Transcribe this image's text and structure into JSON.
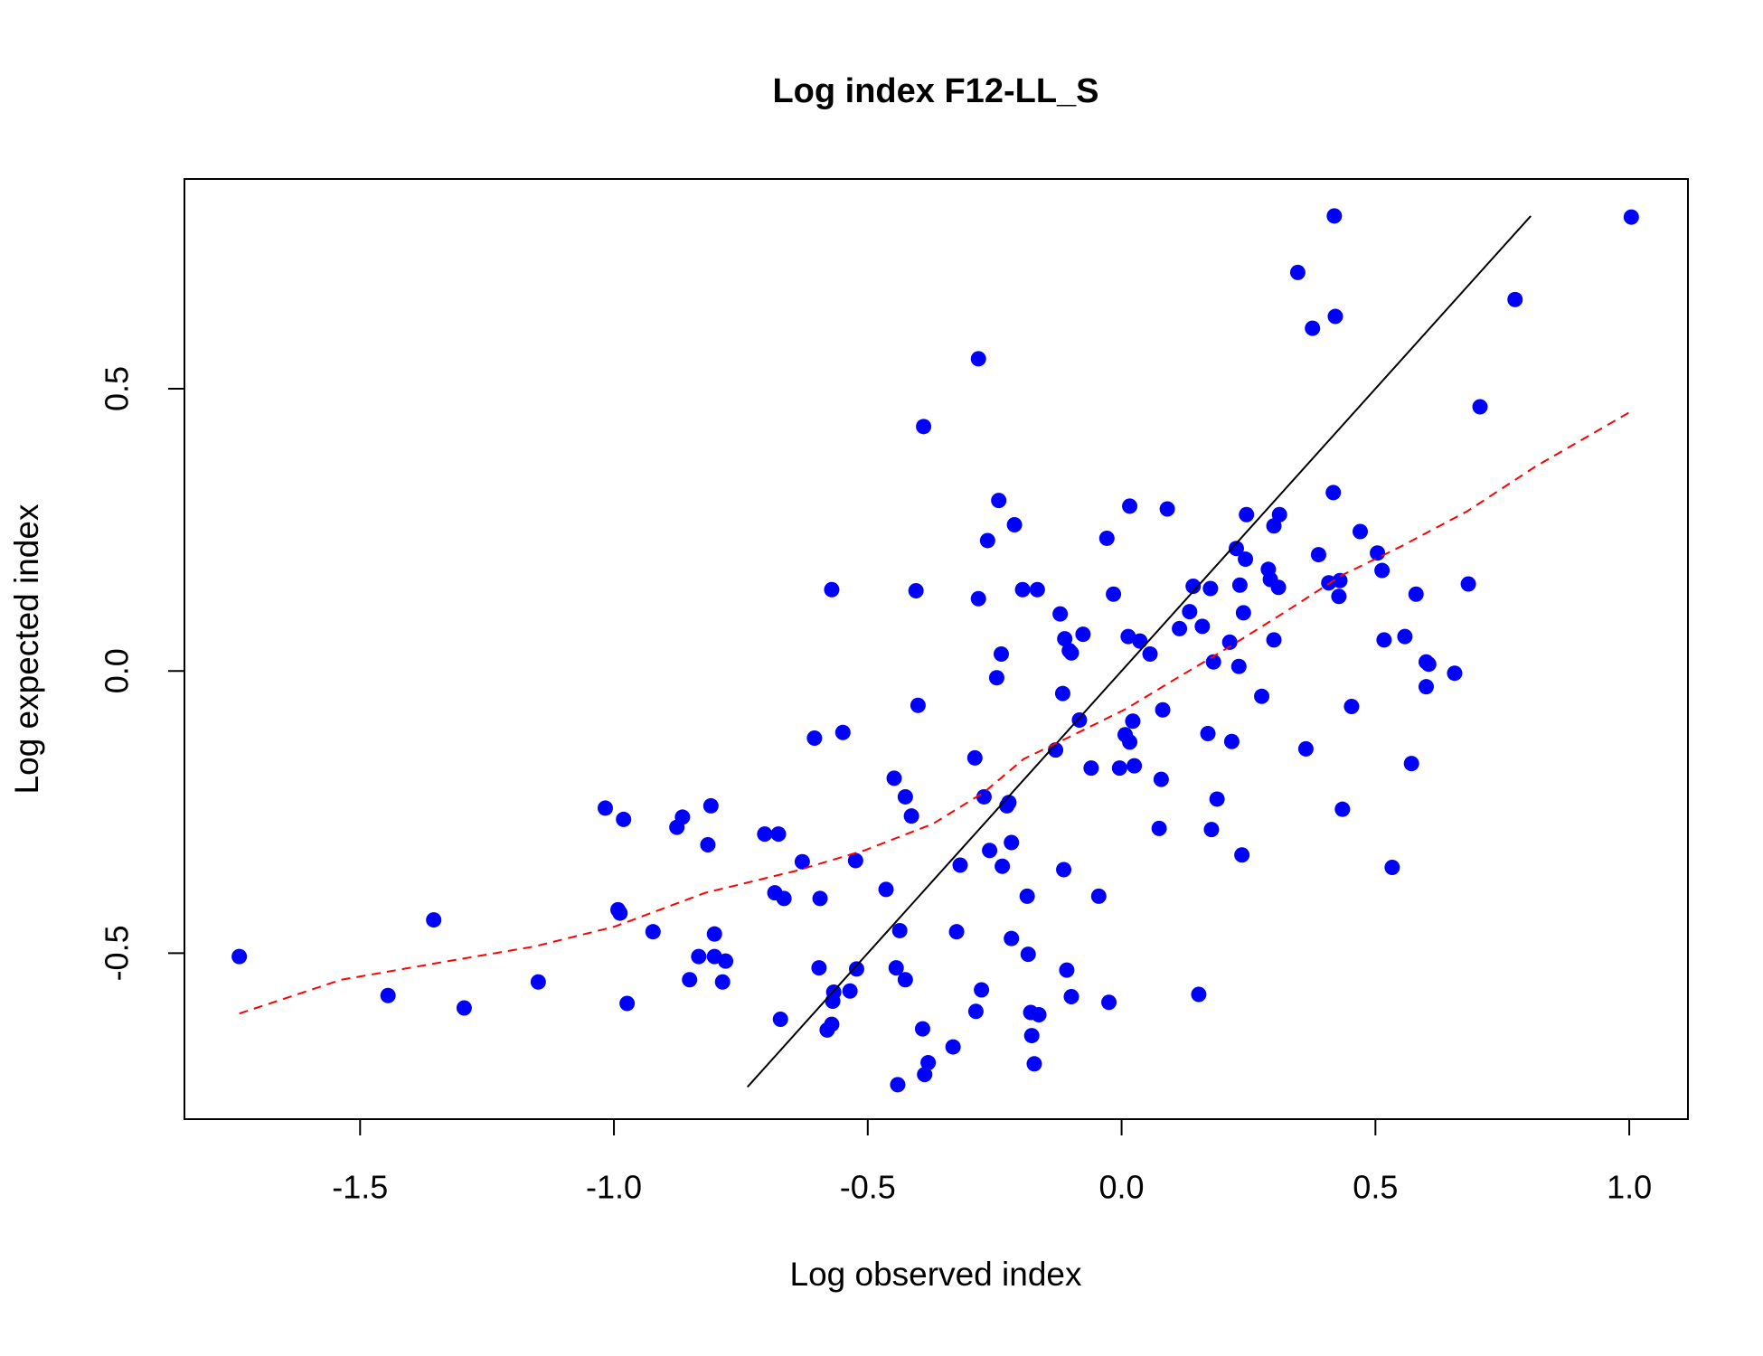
{
  "chart_data": {
    "type": "scatter",
    "title": "Log index F12-LL_S",
    "x_label": "Log observed index",
    "y_label": "Log expected index",
    "xlim": [
      -1.846,
      1.1156
    ],
    "ylim": [
      -0.794,
      0.8715
    ],
    "xticks": [
      -1.5,
      {
        "value": -1,
        "label": "-1.0"
      },
      -0.5,
      {
        "value": 0,
        "label": "0.0"
      },
      0.5,
      {
        "value": 1,
        "label": "1.0"
      }
    ],
    "yticks": [
      -0.5,
      {
        "value": 0,
        "label": "0.0"
      },
      0.5
    ],
    "series": [
      {
        "type": "scatter",
        "color": "#0000ff",
        "x": [
          -1.738,
          -1.445,
          -1.355,
          -1.295,
          -1.149,
          -1.017,
          -0.992,
          -0.988,
          -0.981,
          -0.974,
          -0.923,
          -0.876,
          -0.865,
          -0.851,
          -0.833,
          -0.815,
          -0.809,
          -0.802,
          -0.802,
          -0.786,
          -0.78,
          -0.703,
          -0.676,
          -0.683,
          -0.672,
          -0.665,
          -0.629,
          -0.605,
          -0.594,
          -0.596,
          -0.58,
          -0.571,
          -0.571,
          -0.569,
          -0.567,
          -0.549,
          -0.535,
          -0.524,
          -0.522,
          -0.464,
          -0.448,
          -0.444,
          -0.441,
          -0.437,
          -0.426,
          -0.426,
          -0.414,
          -0.405,
          -0.401,
          -0.392,
          -0.39,
          -0.388,
          -0.381,
          -0.332,
          -0.325,
          -0.318,
          -0.289,
          -0.282,
          -0.282,
          -0.287,
          -0.276,
          -0.271,
          -0.264,
          -0.26,
          -0.246,
          -0.242,
          -0.237,
          -0.235,
          -0.226,
          -0.222,
          -0.217,
          -0.217,
          -0.211,
          -0.195,
          -0.186,
          -0.184,
          -0.177,
          -0.179,
          -0.172,
          -0.163,
          -0.166,
          -0.13,
          -0.121,
          -0.116,
          -0.114,
          -0.112,
          -0.108,
          -0.103,
          -0.099,
          -0.099,
          -0.083,
          -0.076,
          -0.06,
          -0.045,
          -0.029,
          -0.025,
          -0.016,
          -0.004,
          0.007,
          0.013,
          0.016,
          0.016,
          0.022,
          0.025,
          0.036,
          0.056,
          0.074,
          0.078,
          0.081,
          0.09,
          0.114,
          0.134,
          0.141,
          0.152,
          0.159,
          0.17,
          0.175,
          0.177,
          0.181,
          0.188,
          0.213,
          0.217,
          0.226,
          0.231,
          0.233,
          0.24,
          0.237,
          0.244,
          0.246,
          0.276,
          0.289,
          0.293,
          0.3,
          0.3,
          0.309,
          0.311,
          0.347,
          0.363,
          0.376,
          0.388,
          0.408,
          0.417,
          0.419,
          0.421,
          0.428,
          0.43,
          0.435,
          0.453,
          0.47,
          0.504,
          0.513,
          0.517,
          0.533,
          0.558,
          0.571,
          0.58,
          0.6,
          0.605,
          0.6,
          0.656,
          0.683,
          0.706,
          0.775,
          1.004
        ],
        "values": [
          -0.506,
          -0.575,
          -0.441,
          -0.597,
          -0.551,
          -0.243,
          -0.423,
          -0.429,
          -0.263,
          -0.589,
          -0.462,
          -0.277,
          -0.259,
          -0.547,
          -0.506,
          -0.308,
          -0.239,
          -0.466,
          -0.506,
          -0.551,
          -0.514,
          -0.289,
          -0.289,
          -0.393,
          -0.617,
          -0.403,
          -0.338,
          -0.119,
          -0.403,
          -0.526,
          -0.636,
          0.144,
          -0.626,
          -0.585,
          -0.569,
          -0.109,
          -0.567,
          -0.336,
          -0.528,
          -0.387,
          -0.19,
          -0.526,
          -0.733,
          -0.46,
          -0.223,
          -0.547,
          -0.257,
          0.142,
          -0.061,
          -0.634,
          0.433,
          -0.715,
          -0.694,
          -0.666,
          -0.462,
          -0.344,
          -0.154,
          0.553,
          0.128,
          -0.603,
          -0.565,
          -0.223,
          0.231,
          -0.318,
          -0.012,
          0.302,
          0.03,
          -0.346,
          -0.239,
          -0.233,
          -0.304,
          -0.474,
          0.259,
          0.144,
          -0.399,
          -0.502,
          -0.646,
          -0.605,
          -0.696,
          -0.609,
          0.144,
          -0.14,
          0.101,
          -0.04,
          -0.352,
          0.057,
          -0.53,
          0.036,
          0.032,
          -0.577,
          -0.087,
          0.065,
          -0.172,
          -0.399,
          0.235,
          -0.587,
          0.136,
          -0.172,
          -0.113,
          0.061,
          0.292,
          -0.126,
          -0.089,
          -0.168,
          0.053,
          0.03,
          -0.279,
          -0.192,
          -0.069,
          0.287,
          0.075,
          0.105,
          0.15,
          -0.573,
          0.079,
          -0.111,
          0.146,
          -0.281,
          0.016,
          -0.227,
          0.051,
          -0.125,
          0.217,
          0.008,
          0.152,
          0.103,
          -0.326,
          0.198,
          0.277,
          -0.045,
          0.18,
          0.162,
          0.055,
          0.257,
          0.148,
          0.277,
          0.706,
          -0.138,
          0.607,
          0.206,
          0.156,
          0.316,
          0.806,
          0.628,
          0.132,
          0.16,
          -0.245,
          -0.063,
          0.247,
          0.209,
          0.178,
          0.055,
          -0.348,
          0.061,
          -0.164,
          0.136,
          0.016,
          0.012,
          -0.028,
          -0.004,
          0.154,
          0.468,
          0.658,
          0.804
        ]
      },
      {
        "type": "line",
        "color": "#000000",
        "x": [
          -0.737,
          0.806
        ],
        "values": [
          -0.737,
          0.806
        ]
      },
      {
        "type": "line",
        "color": "#ff0000",
        "dashed": true,
        "x": [
          -1.738,
          -1.537,
          -1.313,
          -1.156,
          -0.999,
          -0.82,
          -0.641,
          -0.507,
          -0.372,
          -0.271,
          -0.193,
          -0.103,
          0.009,
          0.099,
          0.211,
          0.323,
          0.435,
          0.547,
          0.681,
          0.815,
          1.004
        ],
        "values": [
          -0.607,
          -0.547,
          -0.512,
          -0.488,
          -0.453,
          -0.393,
          -0.354,
          -0.318,
          -0.271,
          -0.215,
          -0.156,
          -0.117,
          -0.067,
          -0.018,
          0.042,
          0.105,
          0.17,
          0.219,
          0.283,
          0.362,
          0.46
        ]
      }
    ]
  }
}
